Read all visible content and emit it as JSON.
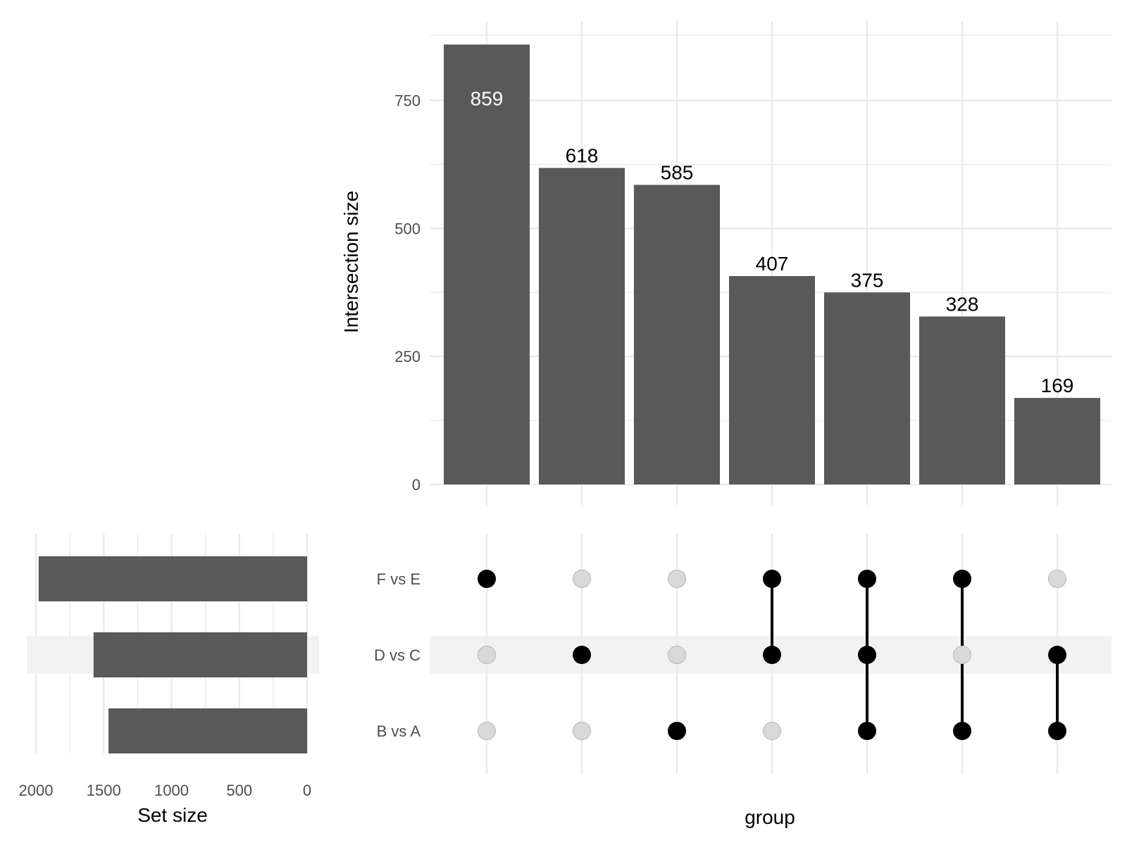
{
  "chart_data": {
    "type": "upset",
    "intersections": {
      "ylabel": "Intersection size",
      "xlabel": "group",
      "yticks": [
        0,
        250,
        500,
        750
      ],
      "ylim": [
        0,
        880
      ],
      "grid": true,
      "bar_color": "#595959",
      "bars": [
        {
          "value": 859,
          "label": "859",
          "sets": [
            "F vs E"
          ]
        },
        {
          "value": 618,
          "label": "618",
          "sets": [
            "D vs C"
          ]
        },
        {
          "value": 585,
          "label": "585",
          "sets": [
            "B vs A"
          ]
        },
        {
          "value": 407,
          "label": "407",
          "sets": [
            "F vs E",
            "D vs C"
          ]
        },
        {
          "value": 375,
          "label": "375",
          "sets": [
            "F vs E",
            "D vs C",
            "B vs A"
          ]
        },
        {
          "value": 328,
          "label": "328",
          "sets": [
            "F vs E",
            "B vs A"
          ]
        },
        {
          "value": 169,
          "label": "169",
          "sets": [
            "D vs C",
            "B vs A"
          ]
        }
      ]
    },
    "sets": {
      "xlabel": "Set size",
      "xticks": [
        2000,
        1500,
        1000,
        500,
        0
      ],
      "xlim": [
        0,
        2000
      ],
      "reversed": true,
      "bar_color": "#595959",
      "items": [
        {
          "name": "F vs E",
          "value": 1980
        },
        {
          "name": "D vs C",
          "value": 1575
        },
        {
          "name": "B vs A",
          "value": 1465
        }
      ]
    },
    "matrix": {
      "active_color": "#000000",
      "inactive_color": "#d9d9d9",
      "highlight_row": "D vs C",
      "highlight_color": "#f2f2f2"
    }
  }
}
